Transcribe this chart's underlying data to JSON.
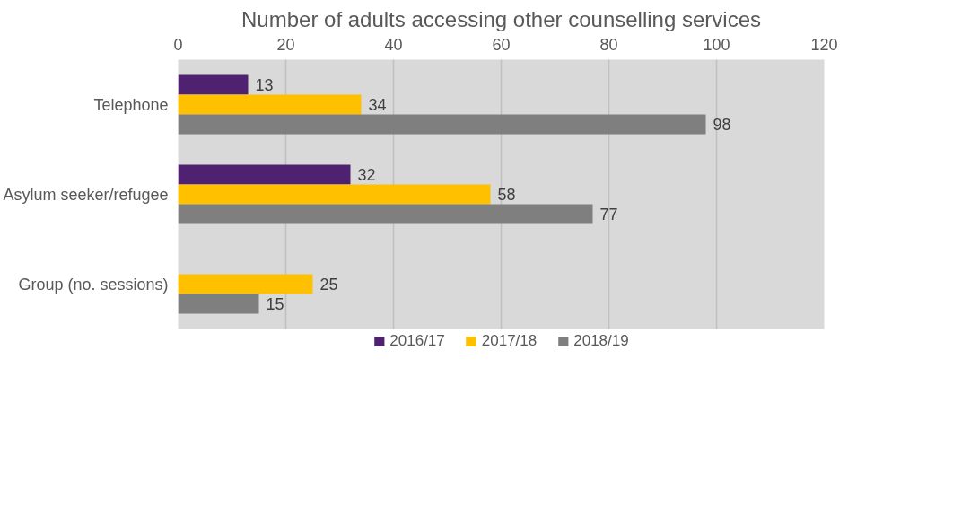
{
  "chart_data": {
    "type": "bar",
    "orientation": "horizontal",
    "title": "Number of adults accessing other counselling services",
    "categories": [
      "Telephone",
      "Asylum seeker/refugee",
      "Group (no. sessions)"
    ],
    "series": [
      {
        "name": "2016/17",
        "color": "#4e2270",
        "values": [
          13,
          32,
          null
        ]
      },
      {
        "name": "2017/18",
        "color": "#ffc000",
        "values": [
          34,
          58,
          25
        ]
      },
      {
        "name": "2018/19",
        "color": "#7f7f7f",
        "values": [
          98,
          77,
          15
        ]
      }
    ],
    "xlim": [
      0,
      120
    ],
    "xticks": [
      0,
      20,
      40,
      60,
      80,
      100,
      120
    ],
    "grid": "x",
    "legend": "bottom",
    "data_labels": true
  }
}
